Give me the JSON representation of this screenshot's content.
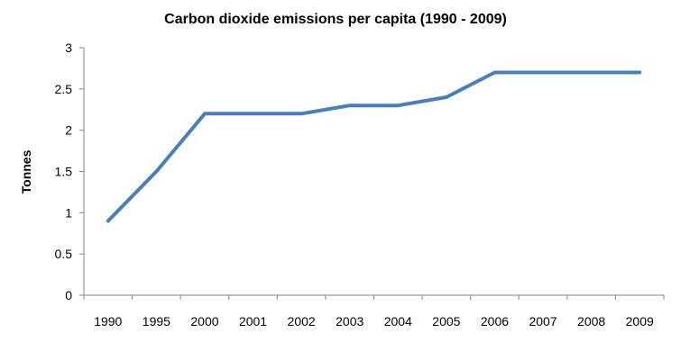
{
  "chart_data": {
    "type": "line",
    "title": "Carbon dioxide emissions per capita (1990 - 2009)",
    "xlabel": "",
    "ylabel": "Tonnes",
    "categories": [
      "1990",
      "1995",
      "2000",
      "2001",
      "2002",
      "2003",
      "2004",
      "2005",
      "2006",
      "2007",
      "2008",
      "2009"
    ],
    "series": [
      {
        "values": [
          0.9,
          1.5,
          2.2,
          2.2,
          2.2,
          2.3,
          2.3,
          2.4,
          2.7,
          2.7,
          2.7,
          2.7
        ],
        "color": "#4a7ebb"
      }
    ],
    "ylim": [
      0,
      3
    ],
    "yticks": [
      "0",
      "0.5",
      "1",
      "1.5",
      "2",
      "2.5",
      "3"
    ],
    "grid": false,
    "legend": "none"
  }
}
